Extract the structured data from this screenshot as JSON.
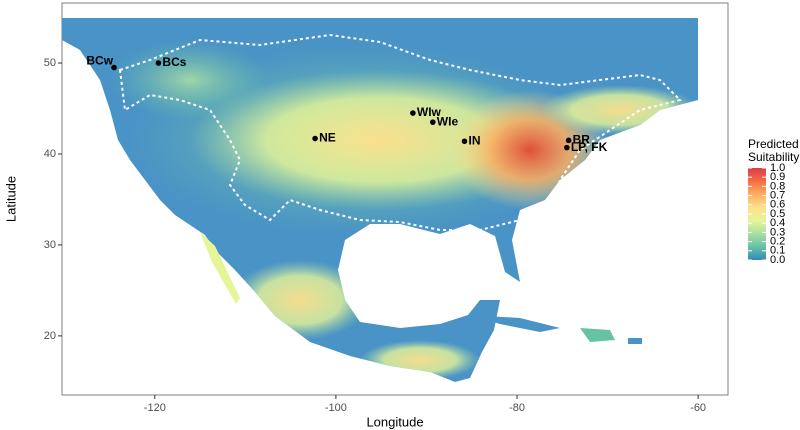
{
  "chart_data": {
    "type": "map",
    "x_label": "Longitude",
    "y_label": "Latitude",
    "xlim": [
      -130.25,
      -56.7
    ],
    "ylim": [
      13.5,
      56.6
    ],
    "xticks": [
      -120,
      -100,
      -80,
      -60
    ],
    "yticks": [
      20,
      30,
      40,
      50
    ],
    "points": {
      "labels": [
        "BCw",
        "BCs",
        "NE",
        "WIw",
        "WIe",
        "IN",
        "BR",
        "LP, FK"
      ],
      "x": [
        -124.5,
        -119.6,
        -102.3,
        -91.5,
        -89.3,
        -85.8,
        -74.3,
        -74.5
      ],
      "y": [
        49.5,
        50.0,
        41.7,
        44.5,
        43.5,
        41.4,
        41.5,
        40.7
      ],
      "color": "#000000"
    },
    "legend": {
      "title": [
        "Predicted",
        "Suitability"
      ],
      "limits": [
        0,
        1
      ],
      "colors": [
        "#3288bd",
        "#66c2a5",
        "#abdda4",
        "#e6f598",
        "#fee08b",
        "#fdae61",
        "#f46d43",
        "#d53e4f"
      ],
      "ticks": [
        {
          "value": 0,
          "label": "0.0"
        },
        {
          "value": 0.1,
          "label": "0.1"
        },
        {
          "value": 0.2,
          "label": "0.2"
        },
        {
          "value": 0.3,
          "label": "0.3"
        },
        {
          "value": 0.4,
          "label": "0.4"
        },
        {
          "value": 0.5,
          "label": "0.5"
        },
        {
          "value": 0.6,
          "label": "0.6"
        },
        {
          "value": 0.7,
          "label": "0.7"
        },
        {
          "value": 0.8,
          "label": "0.8"
        },
        {
          "value": 0.9,
          "label": "0.9"
        },
        {
          "value": 1,
          "label": "1.0"
        }
      ]
    }
  }
}
